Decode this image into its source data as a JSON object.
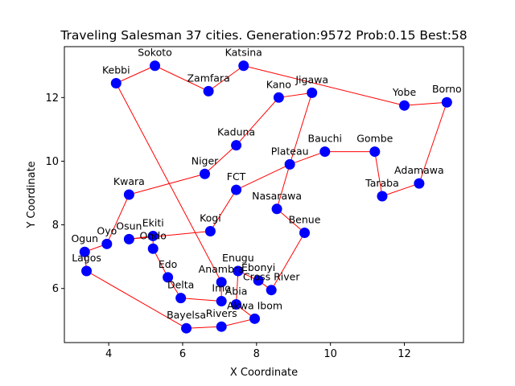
{
  "chart_data": {
    "type": "scatter",
    "title": "Traveling Salesman 37 cities. Generation:9572 Prob:0.15 Best:58",
    "xlabel": "X Coordinate",
    "ylabel": "Y Coordinate",
    "xlim": [
      2.8,
      13.6
    ],
    "ylim": [
      4.3,
      13.6
    ],
    "xticks": [
      4,
      6,
      8,
      10,
      12
    ],
    "yticks": [
      6,
      8,
      10,
      12
    ],
    "grid": false,
    "colors": {
      "point": "#0000ff",
      "route": "#ff0000"
    },
    "cities": [
      {
        "name": "Sokoto",
        "x": 5.25,
        "y": 13.0
      },
      {
        "name": "Katsina",
        "x": 7.65,
        "y": 13.0
      },
      {
        "name": "Kebbi",
        "x": 4.2,
        "y": 12.45
      },
      {
        "name": "Zamfara",
        "x": 6.7,
        "y": 12.2
      },
      {
        "name": "Jigawa",
        "x": 9.5,
        "y": 12.15
      },
      {
        "name": "Kano",
        "x": 8.6,
        "y": 12.0
      },
      {
        "name": "Yobe",
        "x": 12.0,
        "y": 11.75
      },
      {
        "name": "Borno",
        "x": 13.15,
        "y": 11.85
      },
      {
        "name": "Kaduna",
        "x": 7.45,
        "y": 10.5
      },
      {
        "name": "Bauchi",
        "x": 9.85,
        "y": 10.3
      },
      {
        "name": "Gombe",
        "x": 11.2,
        "y": 10.3
      },
      {
        "name": "Plateau",
        "x": 8.9,
        "y": 9.9
      },
      {
        "name": "Niger",
        "x": 6.6,
        "y": 9.6
      },
      {
        "name": "Adamawa",
        "x": 12.4,
        "y": 9.3
      },
      {
        "name": "FCT",
        "x": 7.45,
        "y": 9.1
      },
      {
        "name": "Kwara",
        "x": 4.55,
        "y": 8.95
      },
      {
        "name": "Taraba",
        "x": 11.4,
        "y": 8.9
      },
      {
        "name": "Nasarawa",
        "x": 8.55,
        "y": 8.5
      },
      {
        "name": "Kogi",
        "x": 6.75,
        "y": 7.8
      },
      {
        "name": "Benue",
        "x": 9.3,
        "y": 7.75
      },
      {
        "name": "Ekiti",
        "x": 5.2,
        "y": 7.65
      },
      {
        "name": "Osun",
        "x": 4.55,
        "y": 7.55
      },
      {
        "name": "Oyo",
        "x": 3.95,
        "y": 7.4
      },
      {
        "name": "Ondo",
        "x": 5.2,
        "y": 7.25
      },
      {
        "name": "Ogun",
        "x": 3.35,
        "y": 7.15
      },
      {
        "name": "Enugu",
        "x": 7.5,
        "y": 6.55
      },
      {
        "name": "Lagos",
        "x": 3.4,
        "y": 6.55
      },
      {
        "name": "Edo",
        "x": 5.6,
        "y": 6.35
      },
      {
        "name": "Ebonyi",
        "x": 8.05,
        "y": 6.25
      },
      {
        "name": "Anambra",
        "x": 7.05,
        "y": 6.2
      },
      {
        "name": "Cross River",
        "x": 8.4,
        "y": 5.95
      },
      {
        "name": "Delta",
        "x": 5.95,
        "y": 5.7
      },
      {
        "name": "Imo",
        "x": 7.05,
        "y": 5.6
      },
      {
        "name": "Abia",
        "x": 7.45,
        "y": 5.5
      },
      {
        "name": "Akwa Ibom",
        "x": 7.95,
        "y": 5.05
      },
      {
        "name": "Rivers",
        "x": 7.05,
        "y": 4.8
      },
      {
        "name": "Bayelsa",
        "x": 6.1,
        "y": 4.75
      }
    ],
    "route": [
      "Kebbi",
      "Sokoto",
      "Zamfara",
      "Katsina",
      "Yobe",
      "Borno",
      "Adamawa",
      "Taraba",
      "Gombe",
      "Bauchi",
      "Plateau",
      "Jigawa",
      "Kano",
      "Kaduna",
      "Niger",
      "Kwara",
      "Oyo",
      "Ogun",
      "Lagos",
      "Bayelsa",
      "Rivers",
      "Akwa Ibom",
      "Abia",
      "Enugu",
      "Ebonyi",
      "Cross River",
      "Benue",
      "Nasarawa",
      "Plateau",
      "FCT",
      "Kogi",
      "Osun",
      "Ekiti",
      "Ondo",
      "Edo",
      "Delta",
      "Imo",
      "Anambra",
      "Kebbi"
    ]
  }
}
